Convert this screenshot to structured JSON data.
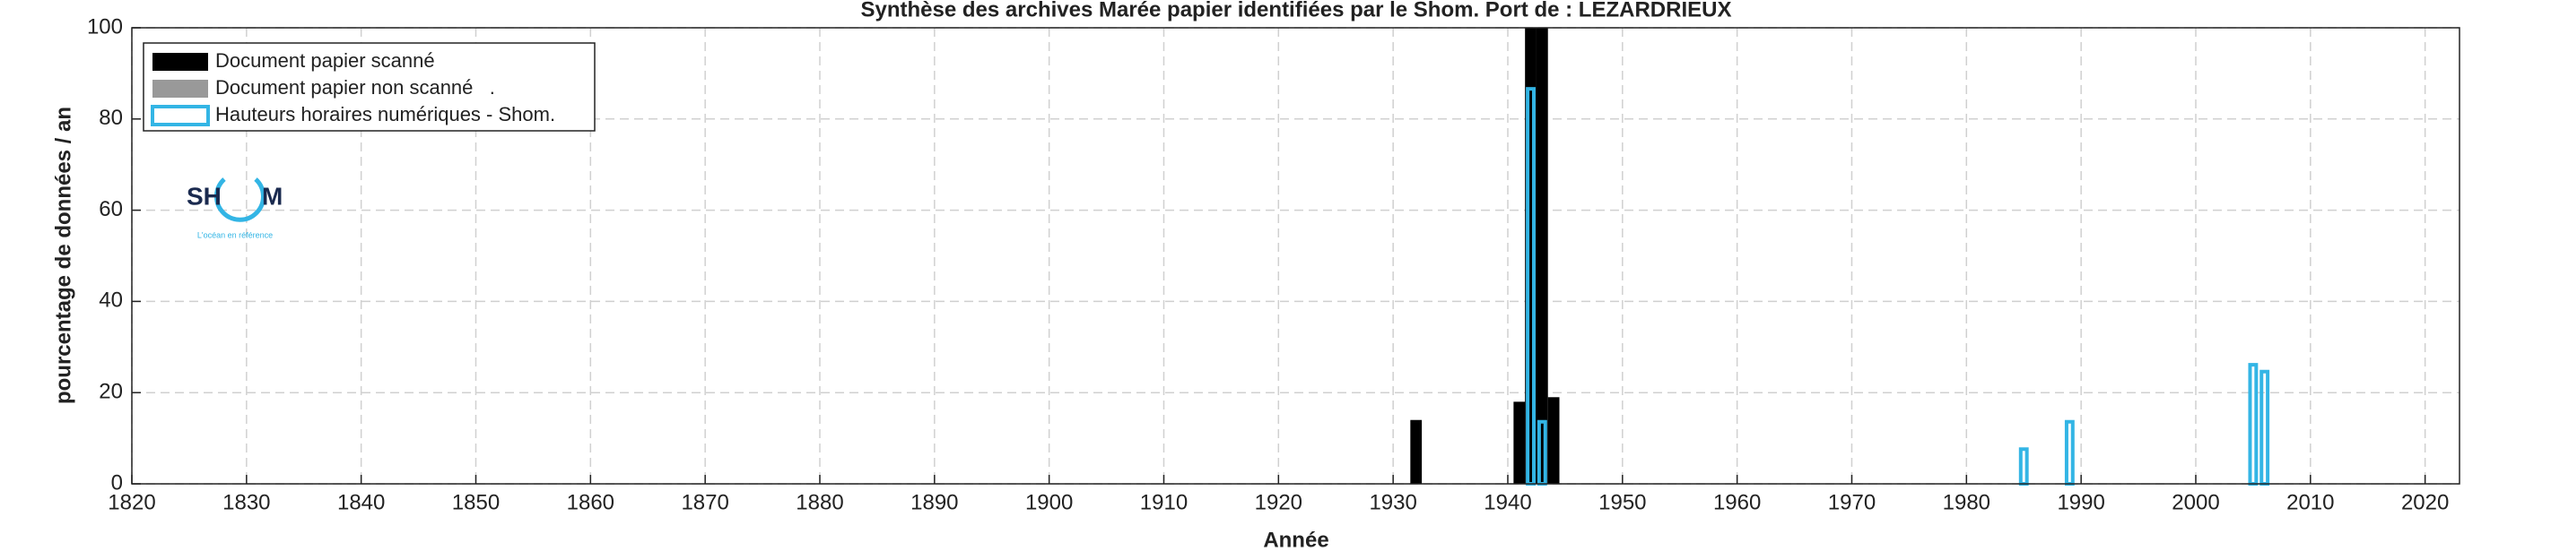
{
  "chart_data": {
    "type": "bar",
    "title": "Synthèse des archives Marée papier identifiées par le Shom. Port de : LEZARDRIEUX",
    "x_label": "Année",
    "y_label": "pourcentage de données / an",
    "xlim": [
      1820,
      2023
    ],
    "ylim": [
      0,
      100
    ],
    "xticks": [
      1820,
      1830,
      1840,
      1850,
      1860,
      1870,
      1880,
      1890,
      1900,
      1910,
      1920,
      1930,
      1940,
      1950,
      1960,
      1970,
      1980,
      1990,
      2000,
      2010,
      2020
    ],
    "yticks": [
      0,
      20,
      40,
      60,
      80,
      100
    ],
    "grid": true,
    "legend": "upper left",
    "series": [
      {
        "name": "Document papier scanné",
        "color": "#000000",
        "style": "filled",
        "x": [
          1932,
          1941,
          1942,
          1943,
          1944
        ],
        "values": [
          14,
          18,
          100,
          100,
          19
        ]
      },
      {
        "name": "Document papier non scanné   .",
        "color": "#999999",
        "style": "filled",
        "x": [],
        "values": []
      },
      {
        "name": "Hauteurs horaires numériques - Shom.",
        "color": "#33b5e5",
        "style": "outline",
        "x": [
          1942,
          1943,
          1985,
          1989,
          2005,
          2006
        ],
        "values": [
          87,
          14,
          8,
          14,
          26.5,
          25
        ]
      }
    ]
  },
  "logo": {
    "left": "SH",
    "right": "M",
    "tagline": "L'océan en référence"
  }
}
